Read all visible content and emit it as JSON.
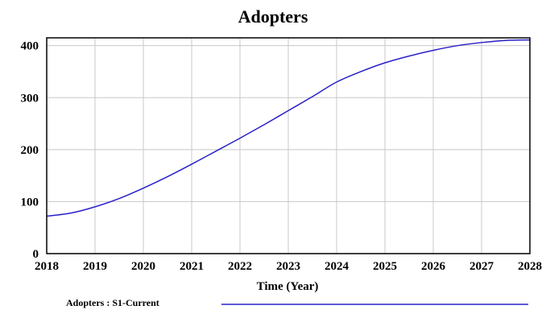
{
  "chart_data": {
    "type": "line",
    "title": "Adopters",
    "xlabel": "Time (Year)",
    "ylabel": "",
    "xlim": [
      2018,
      2028
    ],
    "ylim": [
      0,
      415
    ],
    "x_ticks": [
      "2018",
      "2019",
      "2020",
      "2021",
      "2022",
      "2023",
      "2024",
      "2025",
      "2026",
      "2027",
      "2028"
    ],
    "y_ticks": [
      "0",
      "100",
      "200",
      "300",
      "400"
    ],
    "grid": true,
    "legend_position": "bottom",
    "series": [
      {
        "name": "Adopters : S1-Current",
        "color": "#2a20c8",
        "x": [
          2018,
          2018.5,
          2019,
          2019.5,
          2020,
          2020.5,
          2021,
          2021.5,
          2022,
          2022.5,
          2023,
          2023.5,
          2024,
          2024.5,
          2025,
          2025.5,
          2026,
          2026.5,
          2027,
          2027.5,
          2028
        ],
        "y": [
          72,
          78,
          90,
          106,
          126,
          148,
          172,
          197,
          222,
          248,
          275,
          302,
          330,
          350,
          367,
          380,
          391,
          400,
          406,
          410,
          411
        ]
      }
    ]
  },
  "colors": {
    "grid": "#c8c8c8",
    "frame": "#000000",
    "line": "#2a20c8"
  }
}
